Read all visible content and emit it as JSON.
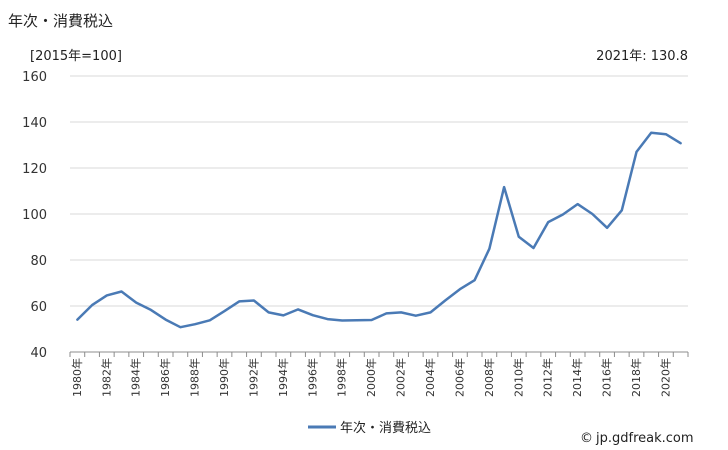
{
  "chart_data": {
    "type": "line",
    "title": "年次・消費税込",
    "unit_label": "[2015年=100]",
    "annotation": "2021年: 130.8",
    "ylim": [
      40,
      160
    ],
    "yticks": [
      40,
      60,
      80,
      100,
      120,
      140,
      160
    ],
    "grid": true,
    "legend_position": "bottom",
    "x": [
      "1980年",
      "1981年",
      "1982年",
      "1983年",
      "1984年",
      "1985年",
      "1986年",
      "1987年",
      "1988年",
      "1989年",
      "1990年",
      "1991年",
      "1992年",
      "1993年",
      "1994年",
      "1995年",
      "1996年",
      "1997年",
      "1998年",
      "1999年",
      "2000年",
      "2001年",
      "2002年",
      "2003年",
      "2004年",
      "2005年",
      "2006年",
      "2007年",
      "2008年",
      "2009年",
      "2010年",
      "2011年",
      "2012年",
      "2013年",
      "2014年",
      "2015年",
      "2016年",
      "2017年",
      "2018年",
      "2019年",
      "2020年",
      "2021年"
    ],
    "xtick_labels": [
      "1980年",
      "1982年",
      "1984年",
      "1986年",
      "1988年",
      "1990年",
      "1992年",
      "1994年",
      "1996年",
      "1998年",
      "2000年",
      "2002年",
      "2004年",
      "2006年",
      "2008年",
      "2010年",
      "2012年",
      "2014年",
      "2016年",
      "2018年",
      "2020年"
    ],
    "series": [
      {
        "name": "年次・消費税込",
        "color": "#4a7ab5",
        "values": [
          54.1,
          60.4,
          64.6,
          66.3,
          61.5,
          58.3,
          54.1,
          50.8,
          52.1,
          53.8,
          57.8,
          62.0,
          62.4,
          57.2,
          55.9,
          58.5,
          56.0,
          54.3,
          53.7,
          53.8,
          53.9,
          56.8,
          57.2,
          55.8,
          57.2,
          62.4,
          67.3,
          71.2,
          84.9,
          111.7,
          90.1,
          85.2,
          96.5,
          99.8,
          104.3,
          100.0,
          94.0,
          101.6,
          127.0,
          135.3,
          134.7,
          130.8
        ]
      }
    ]
  },
  "footer": {
    "credit_icon": "copyright-icon",
    "credit_text": "jp.gdfreak.com"
  }
}
